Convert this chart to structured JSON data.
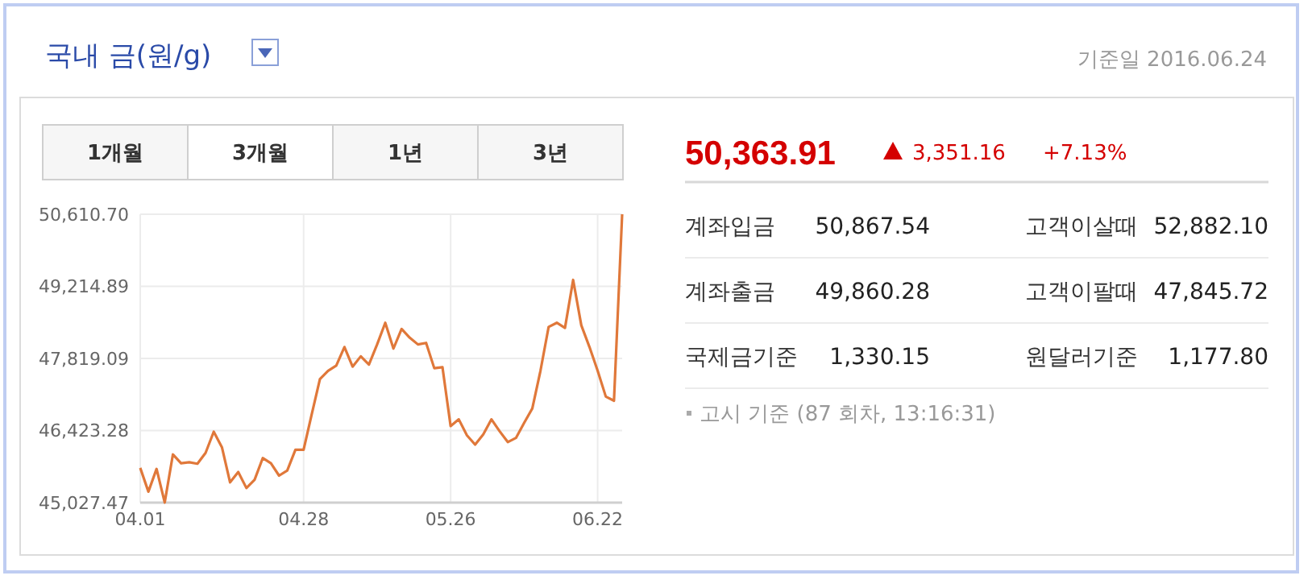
{
  "chart_data": [
    {
      "type": "line",
      "title": "국내 금(원/g)",
      "annotations": [
        "1개월",
        "3개월",
        "1년",
        "3년"
      ],
      "categories": [
        "04.01",
        null,
        null,
        null,
        null,
        null,
        null,
        null,
        null,
        null,
        null,
        null,
        null,
        null,
        null,
        null,
        null,
        null,
        null,
        null,
        "04.28",
        null,
        null,
        null,
        null,
        null,
        null,
        null,
        null,
        null,
        null,
        null,
        null,
        null,
        null,
        null,
        null,
        null,
        "05.26",
        null,
        null,
        null,
        null,
        null,
        null,
        null,
        null,
        null,
        null,
        null,
        null,
        null,
        null,
        null,
        null,
        null,
        "06.22",
        null,
        null,
        null
      ],
      "series": [
        {
          "color": "#e0783a",
          "values": [
            45700,
            45240,
            45680,
            45030,
            45960,
            45790,
            45810,
            45780,
            45990,
            46400,
            46100,
            45420,
            45620,
            45310,
            45470,
            45890,
            45790,
            45550,
            45650,
            46050,
            46050,
            46740,
            47420,
            47580,
            47680,
            48040,
            47660,
            47860,
            47700,
            48090,
            48510,
            48010,
            48390,
            48220,
            48090,
            48120,
            47630,
            47650,
            46510,
            46640,
            46330,
            46150,
            46350,
            46640,
            46410,
            46200,
            46280,
            46570,
            46850,
            47580,
            48430,
            48510,
            48410,
            49340,
            48460,
            48040,
            47580,
            47080,
            47000,
            50610
          ]
        }
      ],
      "ylim": [
        45027.47,
        50610.7
      ],
      "yticks": [
        {
          "value": 45027.47,
          "label": "45,027.47"
        },
        {
          "value": 46423.28,
          "label": "46,423.28"
        },
        {
          "value": 47819.09,
          "label": "47,819.09"
        },
        {
          "value": 49214.89,
          "label": "49,214.89"
        },
        {
          "value": 50610.7,
          "label": "50,610.70"
        }
      ],
      "grid": true,
      "marker": "none",
      "line_style": "solid"
    },
    {
      "type": "other",
      "annotations": [
        "기준일 2016.06.24",
        "50,363.91",
        "3,351.16",
        "+7.13%",
        "계좌입금",
        "50,867.54",
        "고객이살때",
        "52,882.10",
        "계좌출금",
        "49,860.28",
        "고객이팔때",
        "47,845.72",
        "국제금기준",
        "1,330.15",
        "원달러기준",
        "1,177.80",
        "고시 기준 (87 회차, 13:16:31)"
      ]
    }
  ]
}
